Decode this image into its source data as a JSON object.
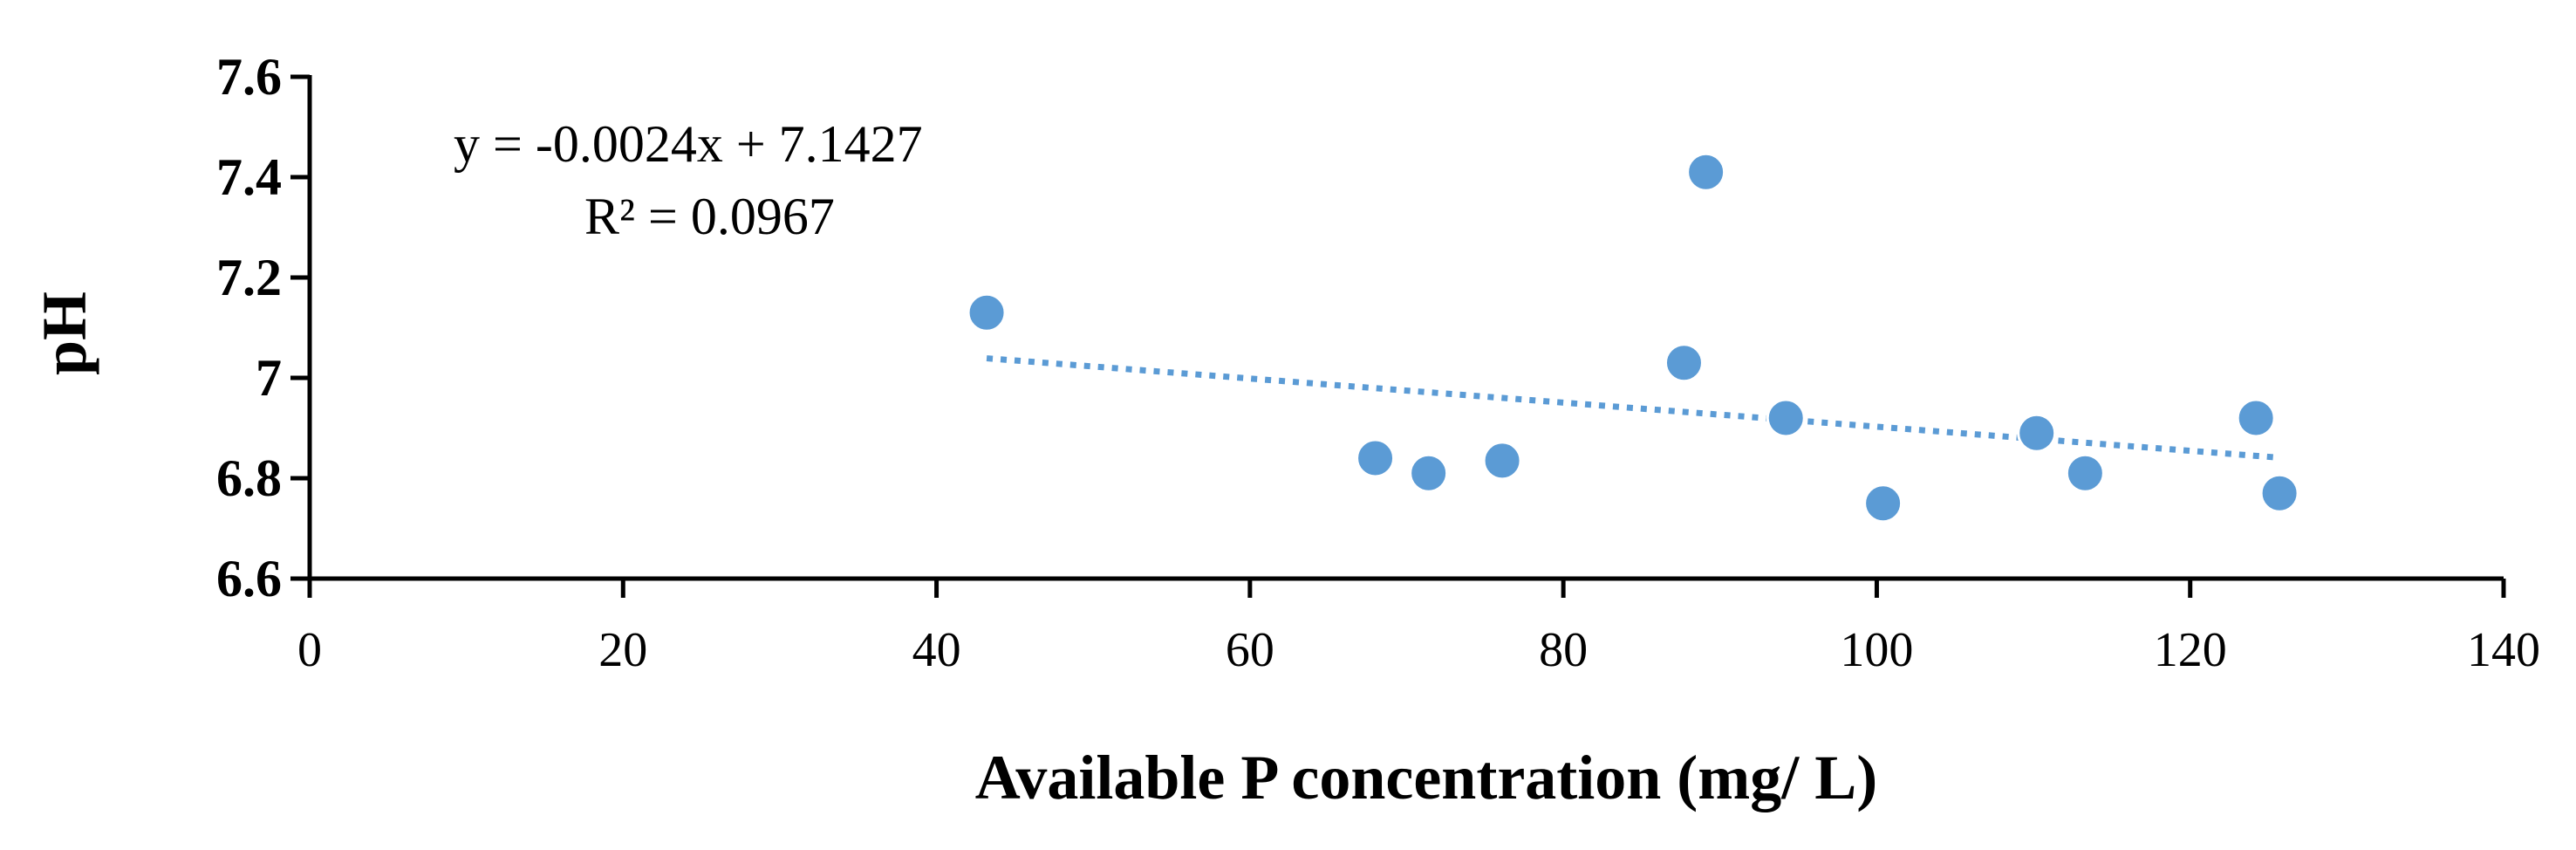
{
  "chart_data": {
    "type": "scatter",
    "title": "",
    "xlabel": "Available P concentration (mg/ L)",
    "ylabel": "pH",
    "xlim": [
      0,
      140
    ],
    "ylim": [
      6.6,
      7.6
    ],
    "x_ticks": [
      "0",
      "20",
      "40",
      "60",
      "80",
      "100",
      "120",
      "140"
    ],
    "y_ticks": [
      "6.6",
      "6.8",
      "7",
      "7.2",
      "7.4",
      "7.6"
    ],
    "grid": false,
    "legend": "none",
    "series": [
      {
        "color": "#5B9BD5",
        "points": [
          {
            "x": 43.2,
            "y": 7.13
          },
          {
            "x": 68.0,
            "y": 6.84
          },
          {
            "x": 71.4,
            "y": 6.81
          },
          {
            "x": 76.1,
            "y": 6.835
          },
          {
            "x": 87.7,
            "y": 7.03
          },
          {
            "x": 89.1,
            "y": 7.41
          },
          {
            "x": 94.2,
            "y": 6.92
          },
          {
            "x": 100.4,
            "y": 6.75
          },
          {
            "x": 110.2,
            "y": 6.89
          },
          {
            "x": 113.3,
            "y": 6.81
          },
          {
            "x": 124.2,
            "y": 6.92
          },
          {
            "x": 125.7,
            "y": 6.77
          }
        ]
      }
    ],
    "trendline": {
      "type": "linear",
      "slope": -0.0024,
      "intercept": 7.1427,
      "x_range": [
        43.2,
        125.7
      ],
      "color": "#5B9BD5",
      "style": "dotted"
    },
    "annotations": {
      "equation": "y = -0.0024x + 7.1427",
      "r_squared": "R² = 0.0967"
    }
  }
}
